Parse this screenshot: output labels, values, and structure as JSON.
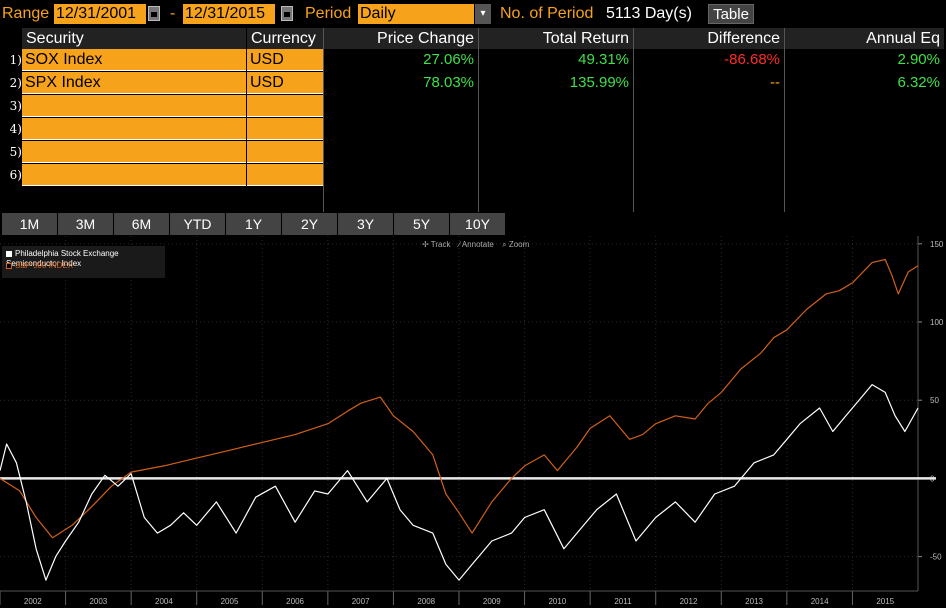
{
  "topbar": {
    "range_label": "Range",
    "start_date": "12/31/2001",
    "dash": "-",
    "end_date": "12/31/2015",
    "period_label": "Period",
    "period_value": "Daily",
    "num_period_label": "No. of Period",
    "num_period_value": "5113 Day(s)",
    "table_button": "Table"
  },
  "table": {
    "headers": [
      "Security",
      "Currency",
      "Price Change",
      "Total Return",
      "Difference",
      "Annual Eq"
    ],
    "rows": [
      {
        "n": "1)",
        "security": "SOX Index",
        "currency": "USD",
        "price_change": "27.06%",
        "total_return": "49.31%",
        "difference": "-86.68%",
        "annual_eq": "2.90%"
      },
      {
        "n": "2)",
        "security": "SPX Index",
        "currency": "USD",
        "price_change": "78.03%",
        "total_return": "135.99%",
        "difference": "--",
        "annual_eq": "6.32%"
      },
      {
        "n": "3)",
        "security": "",
        "currency": ""
      },
      {
        "n": "4)",
        "security": "",
        "currency": ""
      },
      {
        "n": "5)",
        "security": "",
        "currency": ""
      },
      {
        "n": "6)",
        "security": "",
        "currency": ""
      }
    ],
    "colors": {
      "positive": "#3fe04a",
      "negative": "#ff2b2b",
      "neutral": "#f7a21b"
    }
  },
  "periods": [
    "1M",
    "3M",
    "6M",
    "YTD",
    "1Y",
    "2Y",
    "3Y",
    "5Y",
    "10Y"
  ],
  "tools": {
    "track": "Track",
    "annotate": "Annotate",
    "zoom": "Zoom"
  },
  "chart_data": {
    "type": "line",
    "legend": [
      {
        "name": "Philadelphia Stock Exchange Semiconductor Index",
        "color": "#ffffff"
      },
      {
        "name": "S&P 500 INDEX",
        "color": "#d2601a"
      }
    ],
    "x_ticks": [
      "2002",
      "2003",
      "2004",
      "2005",
      "2006",
      "2007",
      "2008",
      "2009",
      "2010",
      "2011",
      "2012",
      "2013",
      "2014",
      "2015"
    ],
    "y_ticks": [
      "150",
      "100",
      "50",
      "0",
      "-50"
    ],
    "ylim": [
      -72,
      155
    ],
    "xlim": [
      2002.0,
      2016.0
    ],
    "grid": true,
    "series": [
      {
        "name": "S&P 500 INDEX",
        "color": "#d2601a",
        "x": [
          2002.0,
          2002.3,
          2002.55,
          2002.8,
          2003.1,
          2003.4,
          2003.7,
          2004.0,
          2004.5,
          2005.0,
          2005.5,
          2006.0,
          2006.5,
          2007.0,
          2007.3,
          2007.5,
          2007.8,
          2008.0,
          2008.3,
          2008.6,
          2008.8,
          2009.0,
          2009.2,
          2009.5,
          2009.8,
          2010.0,
          2010.3,
          2010.5,
          2010.8,
          2011.0,
          2011.3,
          2011.6,
          2011.8,
          2012.0,
          2012.3,
          2012.6,
          2012.8,
          2013.0,
          2013.3,
          2013.6,
          2013.8,
          2014.0,
          2014.3,
          2014.6,
          2014.8,
          2015.0,
          2015.3,
          2015.5,
          2015.6,
          2015.7,
          2015.85,
          2016.0
        ],
        "y": [
          0,
          -8,
          -25,
          -38,
          -30,
          -18,
          -5,
          4,
          8,
          13,
          18,
          23,
          28,
          35,
          43,
          48,
          52,
          40,
          30,
          15,
          -10,
          -22,
          -35,
          -15,
          0,
          8,
          15,
          5,
          20,
          32,
          40,
          25,
          28,
          35,
          40,
          38,
          48,
          55,
          70,
          80,
          90,
          95,
          108,
          118,
          120,
          125,
          138,
          140,
          130,
          118,
          132,
          136
        ]
      },
      {
        "name": "Philadelphia Stock Exchange Semiconductor Index",
        "color": "#ffffff",
        "x": [
          2002.0,
          2002.1,
          2002.25,
          2002.4,
          2002.55,
          2002.7,
          2002.85,
          2003.0,
          2003.2,
          2003.4,
          2003.6,
          2003.8,
          2004.0,
          2004.2,
          2004.4,
          2004.6,
          2004.8,
          2005.0,
          2005.3,
          2005.6,
          2005.9,
          2006.2,
          2006.5,
          2006.8,
          2007.0,
          2007.3,
          2007.6,
          2007.9,
          2008.1,
          2008.3,
          2008.6,
          2008.8,
          2009.0,
          2009.2,
          2009.5,
          2009.8,
          2010.0,
          2010.3,
          2010.6,
          2010.9,
          2011.1,
          2011.4,
          2011.7,
          2012.0,
          2012.3,
          2012.6,
          2012.9,
          2013.2,
          2013.5,
          2013.8,
          2014.0,
          2014.2,
          2014.5,
          2014.7,
          2014.9,
          2015.1,
          2015.3,
          2015.5,
          2015.65,
          2015.8,
          2016.0
        ],
        "y": [
          5,
          22,
          10,
          -15,
          -45,
          -65,
          -50,
          -40,
          -28,
          -10,
          2,
          -5,
          3,
          -25,
          -35,
          -30,
          -22,
          -30,
          -15,
          -35,
          -12,
          -5,
          -28,
          -8,
          -10,
          5,
          -15,
          0,
          -20,
          -30,
          -35,
          -55,
          -65,
          -55,
          -40,
          -35,
          -25,
          -20,
          -45,
          -30,
          -20,
          -10,
          -40,
          -25,
          -15,
          -28,
          -10,
          -5,
          10,
          15,
          25,
          35,
          45,
          30,
          40,
          50,
          60,
          55,
          40,
          30,
          45
        ]
      }
    ]
  }
}
